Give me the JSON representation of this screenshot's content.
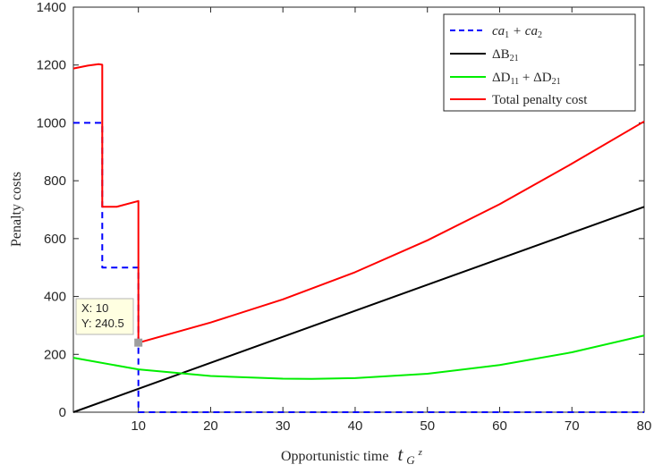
{
  "chart_data": {
    "type": "line",
    "title": "",
    "xlabel": "Opportunistic time",
    "xlabel_symbol": "t",
    "xlabel_sub": "G",
    "xlabel_sup": "z",
    "ylabel": "Penalty costs",
    "xlim": [
      1,
      80
    ],
    "ylim": [
      0,
      1400
    ],
    "xticks": [
      10,
      20,
      30,
      40,
      50,
      60,
      70,
      80
    ],
    "yticks": [
      0,
      200,
      400,
      600,
      800,
      1000,
      1200,
      1400
    ],
    "grid": false,
    "legend_position": "top-right",
    "series": [
      {
        "name": "ca1 + ca2",
        "legend_main": "ca",
        "legend_sub1": "1",
        "legend_mid": " + ca",
        "legend_sub2": "2",
        "color": "#0000ff",
        "style": "dashed",
        "x": [
          1,
          5,
          5,
          10,
          10,
          80
        ],
        "y": [
          1000,
          1000,
          500,
          500,
          0,
          0
        ]
      },
      {
        "name": "ΔB21",
        "legend_main": "ΔB",
        "legend_sub1": "21",
        "color": "#000000",
        "style": "solid",
        "x": [
          1,
          80
        ],
        "y": [
          0,
          710
        ]
      },
      {
        "name": "ΔD11 + ΔD21",
        "legend_main": "ΔD",
        "legend_sub1": "11",
        "legend_mid": " + ΔD",
        "legend_sub2": "21",
        "color": "#00ee00",
        "style": "solid",
        "x": [
          1,
          10,
          20,
          30,
          34,
          40,
          50,
          60,
          70,
          80
        ],
        "y": [
          188,
          148,
          125,
          116,
          115,
          118,
          133,
          163,
          207,
          265
        ]
      },
      {
        "name": "Total penalty  cost",
        "legend_main": "Total penalty  cost",
        "color": "#ff0000",
        "style": "solid",
        "x": [
          1,
          3,
          4.5,
          5,
          5,
          7,
          10,
          10,
          10,
          20,
          30,
          40,
          50,
          60,
          70,
          80
        ],
        "y": [
          1188,
          1198,
          1203,
          1201,
          710,
          710,
          730,
          243,
          240,
          310,
          390,
          484,
          594,
          719,
          859,
          1005
        ]
      }
    ],
    "annotation": {
      "x_label": "X: 10",
      "y_label": "Y: 240.5",
      "x": 10,
      "y": 240.5,
      "background": "#ffffe1",
      "marker_color": "#9e9e9e"
    }
  }
}
